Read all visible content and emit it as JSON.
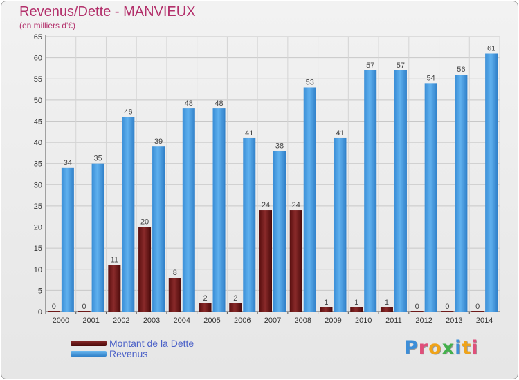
{
  "title": "Revenus/Dette - MANVIEUX",
  "subtitle": "(en milliers d'€)",
  "logo": {
    "text": "Proxiti",
    "letter_colors": [
      "#3d8ed8",
      "#e04f7a",
      "#f0a318",
      "#44b04c",
      "#3d8ed8",
      "#f0a318",
      "#e04f7a"
    ]
  },
  "legend": [
    {
      "label": "Montant de la Dette",
      "color": "#6e1a1a"
    },
    {
      "label": "Revenus",
      "color": "#4a9fe0"
    }
  ],
  "chart_data": {
    "type": "bar",
    "title": "Revenus/Dette - MANVIEUX",
    "subtitle": "(en milliers d'€)",
    "categories": [
      "2000",
      "2001",
      "2002",
      "2003",
      "2004",
      "2005",
      "2006",
      "2007",
      "2008",
      "2009",
      "2010",
      "2011",
      "2012",
      "2013",
      "2014"
    ],
    "series": [
      {
        "name": "Montant de la Dette",
        "color": "#6e1a1a",
        "values": [
          0,
          0,
          11,
          20,
          8,
          2,
          2,
          24,
          24,
          1,
          1,
          1,
          0,
          0,
          0
        ]
      },
      {
        "name": "Revenus",
        "color": "#4a9fe0",
        "values": [
          34,
          35,
          46,
          39,
          48,
          48,
          41,
          38,
          53,
          41,
          57,
          57,
          54,
          56,
          61
        ]
      }
    ],
    "ylim": [
      0,
      65
    ],
    "yticks": [
      0,
      5,
      10,
      15,
      20,
      25,
      30,
      35,
      40,
      45,
      50,
      55,
      60,
      65
    ],
    "grid": true,
    "legend_position": "bottom-left"
  }
}
